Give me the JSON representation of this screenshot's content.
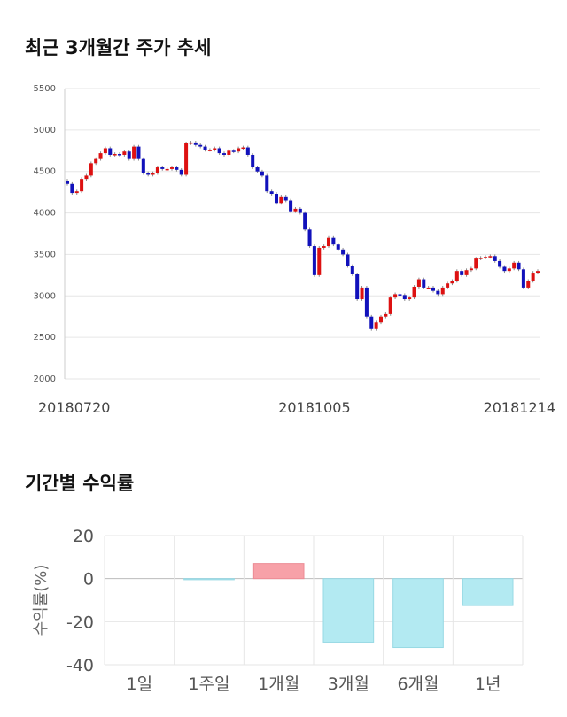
{
  "titles": {
    "price_chart": "최근 3개월간 주가 추세",
    "return_chart": "기간별 수익률"
  },
  "colors": {
    "up": "#dd1111",
    "down": "#1111bb",
    "positive_bar": "#f7a1a8",
    "negative_bar": "#b3eaf2"
  },
  "chart_data": [
    {
      "type": "candlestick",
      "title": "최근 3개월간 주가 추세",
      "ylim": [
        2000,
        5500
      ],
      "yticks": [
        2000,
        2500,
        3000,
        3500,
        4000,
        4500,
        5000,
        5500
      ],
      "xtick_labels": [
        "20180720",
        "20181005",
        "20181214"
      ],
      "grid": true,
      "close": [
        4350,
        4240,
        4260,
        4410,
        4450,
        4600,
        4650,
        4720,
        4780,
        4700,
        4710,
        4700,
        4740,
        4650,
        4800,
        4650,
        4480,
        4460,
        4480,
        4550,
        4530,
        4530,
        4550,
        4520,
        4460,
        4840,
        4850,
        4820,
        4800,
        4760,
        4760,
        4780,
        4720,
        4700,
        4750,
        4740,
        4780,
        4790,
        4700,
        4550,
        4500,
        4450,
        4260,
        4230,
        4120,
        4200,
        4150,
        4020,
        4050,
        4000,
        3800,
        3600,
        3250,
        3580,
        3600,
        3700,
        3620,
        3560,
        3500,
        3360,
        3260,
        2960,
        3100,
        2750,
        2600,
        2680,
        2750,
        2780,
        2980,
        3020,
        3010,
        2960,
        2980,
        3110,
        3200,
        3100,
        3100,
        3060,
        3020,
        3100,
        3150,
        3180,
        3300,
        3250,
        3310,
        3330,
        3450,
        3460,
        3470,
        3480,
        3420,
        3350,
        3300,
        3330,
        3400,
        3320,
        3100,
        3180,
        3280,
        3300
      ]
    },
    {
      "type": "bar",
      "categories": [
        "1일",
        "1주일",
        "1개월",
        "3개월",
        "6개월",
        "1년"
      ],
      "values": [
        0,
        -0.5,
        7,
        -29.5,
        -32,
        -12.5
      ],
      "ylabel": "수익률(%)",
      "ylim": [
        -40,
        20
      ],
      "yticks": [
        20,
        0,
        -20,
        -40
      ],
      "grid": true
    }
  ]
}
